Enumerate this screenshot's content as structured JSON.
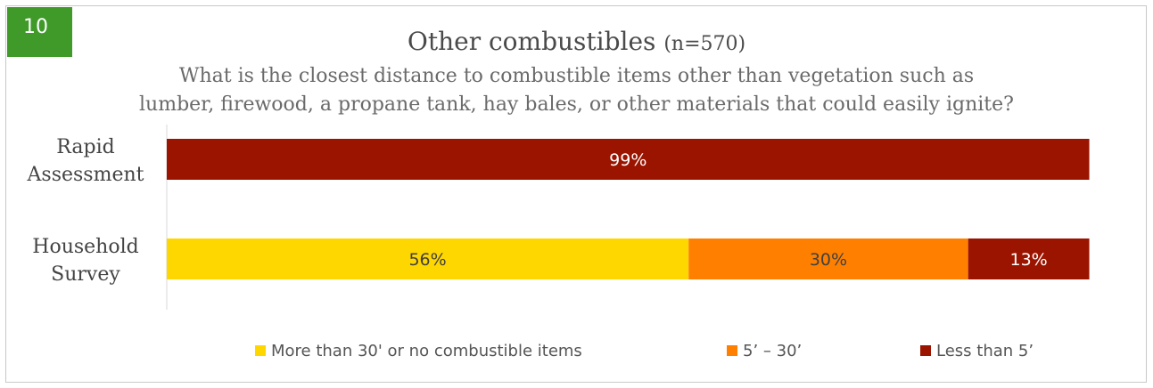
{
  "badge": "10",
  "title": "Other combustibles",
  "title_n": "(n=570)",
  "subtitle_lines": [
    "What is the closest distance to combustible items other than vegetation such as",
    "lumber, firewood, a propane tank, hay bales, or other materials that could easily ignite?"
  ],
  "colors": {
    "badge": "#3f9a2a",
    "more_than_30": "#ffd700",
    "five_to_30": "#ff8000",
    "less_than_5": "#9b1400"
  },
  "chart_data": {
    "type": "bar",
    "orientation": "horizontal",
    "stacked": true,
    "categories": [
      "Rapid Assessment",
      "Household Survey"
    ],
    "category_label_lines": [
      [
        "Rapid",
        "Assessment"
      ],
      [
        "Household",
        "Survey"
      ]
    ],
    "series": [
      {
        "name": "More than 30' or no combustible items",
        "color": "#ffd700",
        "values": [
          0,
          56
        ],
        "labels": [
          "",
          "56%"
        ]
      },
      {
        "name": "5’ – 30’",
        "color": "#ff8000",
        "values": [
          0,
          30
        ],
        "labels": [
          "",
          "30%"
        ]
      },
      {
        "name": "Less than 5’",
        "color": "#9b1400",
        "values": [
          99,
          13
        ],
        "labels": [
          "99%",
          "13%"
        ]
      }
    ],
    "xlim": [
      0,
      100
    ],
    "legend_position": "bottom",
    "grid": false
  }
}
